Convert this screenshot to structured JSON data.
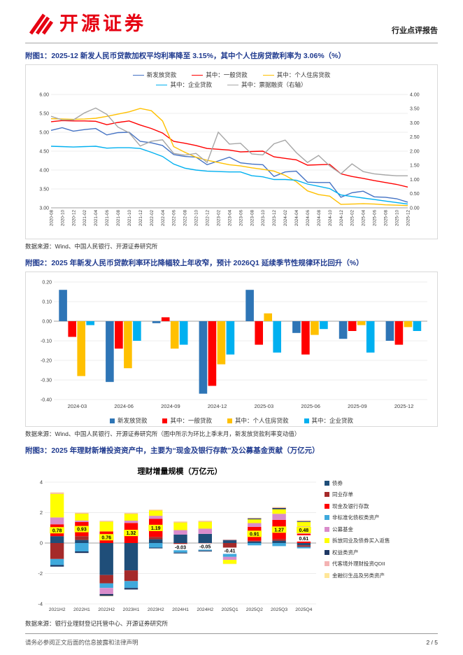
{
  "page": {
    "brand": {
      "name": "开源证券",
      "logo_icon": "kaiyuan-logo-mark",
      "color": "#E60012"
    },
    "report_type": "行业点评报告",
    "colors": {
      "caption": "#1F3A8F",
      "header_rule": "#A6A6A6"
    },
    "footer": {
      "disclaimer": "请务必参阅正文后面的信息披露和法律声明",
      "page_number": "2 / 5"
    }
  },
  "figures": [
    {
      "caption": "附图1：2025-12 新发人民币贷款加权平均利率降至 3.15%，其中个人住房贷款利率为 3.06%（%）",
      "source": "数据来源：Wind、中国人民银行、开源证券研究所"
    },
    {
      "caption": "附图2：2025 年新发人民币贷款利率环比降幅较上年收窄，预计 2026Q1 延续季节性规律环比回升（%）",
      "source": "数据来源：Wind、中国人民银行、开源证券研究所（图中所示为环比上季末月，新发放贷款利率变动值）"
    },
    {
      "caption": "附图3：2025 年理财新增投资资产中，主要为“现金及银行存款”及公募基金贡献（万亿元）",
      "source": "数据来源：银行业理财登记托管中心、开源证券研究所"
    }
  ],
  "chart_data": [
    {
      "type": "line",
      "title": "",
      "x": [
        "2020-08",
        "2020-10",
        "2020-12",
        "2021-02",
        "2021-04",
        "2021-06",
        "2021-08",
        "2021-10",
        "2021-12",
        "2022-02",
        "2022-04",
        "2022-06",
        "2022-08",
        "2022-10",
        "2022-12",
        "2023-02",
        "2023-04",
        "2023-06",
        "2023-08",
        "2023-10",
        "2023-12",
        "2024-02",
        "2024-04",
        "2024-06",
        "2024-08",
        "2024-10",
        "2024-12",
        "2025-02",
        "2025-04",
        "2025-06",
        "2025-08",
        "2025-10",
        "2025-12"
      ],
      "left_axis": {
        "min": 3.0,
        "max": 6.0,
        "step": 0.5
      },
      "right_axis": {
        "min": 0.0,
        "max": 4.0,
        "step": 0.5
      },
      "grid": true,
      "legend_position": "top",
      "legend_rows": [
        [
          0,
          1,
          2
        ],
        [
          3,
          4
        ]
      ],
      "series": [
        {
          "name": "新发放贷款",
          "axis": "left",
          "color": "#4472C4",
          "values": [
            5.05,
            5.12,
            5.03,
            5.07,
            5.1,
            4.93,
            4.99,
            5.0,
            4.76,
            4.72,
            4.65,
            4.41,
            4.36,
            4.34,
            4.14,
            4.24,
            4.34,
            4.19,
            4.16,
            4.14,
            3.83,
            3.95,
            3.97,
            3.68,
            3.67,
            3.67,
            3.28,
            3.4,
            3.44,
            3.29,
            3.28,
            3.24,
            3.15
          ]
        },
        {
          "name": "其中：一般贷款",
          "axis": "left",
          "color": "#FF0000",
          "values": [
            5.28,
            5.31,
            5.3,
            5.3,
            5.29,
            5.2,
            5.26,
            5.3,
            5.19,
            5.1,
            4.98,
            4.76,
            4.71,
            4.65,
            4.57,
            4.55,
            4.53,
            4.48,
            4.49,
            4.5,
            4.35,
            4.31,
            4.27,
            4.13,
            4.14,
            4.15,
            3.9,
            3.83,
            3.78,
            3.72,
            3.67,
            3.62,
            3.55
          ]
        },
        {
          "name": "其中：个人住房贷款",
          "axis": "left",
          "color": "#FFC000",
          "values": [
            5.36,
            5.35,
            5.34,
            5.35,
            5.37,
            5.42,
            5.48,
            5.54,
            5.63,
            5.57,
            5.3,
            4.62,
            4.47,
            4.34,
            4.26,
            4.2,
            4.14,
            4.11,
            4.06,
            4.02,
            3.97,
            3.86,
            3.69,
            3.45,
            3.35,
            3.31,
            3.09,
            3.1,
            3.11,
            3.1,
            3.08,
            3.07,
            3.06
          ]
        },
        {
          "name": "其中：企业贷款",
          "axis": "left",
          "color": "#00B0F0",
          "values": [
            4.63,
            4.62,
            4.61,
            4.62,
            4.63,
            4.58,
            4.59,
            4.59,
            4.57,
            4.47,
            4.36,
            4.16,
            4.05,
            4.0,
            3.97,
            3.96,
            3.95,
            3.95,
            3.85,
            3.82,
            3.75,
            3.75,
            3.73,
            3.63,
            3.57,
            3.51,
            3.34,
            3.3,
            3.26,
            3.22,
            3.18,
            3.14,
            3.1
          ]
        },
        {
          "name": "其中：票据融资（右轴）",
          "axis": "right",
          "color": "#A6A6A6",
          "values": [
            3.23,
            3.1,
            3.1,
            3.35,
            3.52,
            3.3,
            2.85,
            2.65,
            2.18,
            2.35,
            2.4,
            1.92,
            1.86,
            1.92,
            1.6,
            2.67,
            2.25,
            2.28,
            1.9,
            1.87,
            2.26,
            2.39,
            1.95,
            1.6,
            1.85,
            1.48,
            1.2,
            1.55,
            1.28,
            1.2,
            1.16,
            1.13,
            1.13
          ]
        }
      ]
    },
    {
      "type": "bar",
      "title": "",
      "categories": [
        "2024-03",
        "2024-06",
        "2024-09",
        "2024-12",
        "2025-03",
        "2025-06",
        "2025-09",
        "2025-12"
      ],
      "y_axis": {
        "min": -0.4,
        "max": 0.2,
        "step": 0.1
      },
      "grid": true,
      "legend_position": "bottom",
      "series": [
        {
          "name": "新发放贷款",
          "color": "#2E75B6",
          "values": [
            0.16,
            -0.31,
            -0.01,
            -0.37,
            0.16,
            -0.06,
            -0.09,
            -0.1
          ]
        },
        {
          "name": "其中：一般贷款",
          "color": "#FF0000",
          "values": [
            -0.08,
            -0.14,
            0.02,
            -0.33,
            -0.12,
            -0.17,
            -0.05,
            -0.12
          ]
        },
        {
          "name": "其中：个人住房贷款",
          "color": "#FFC000",
          "values": [
            -0.28,
            -0.24,
            -0.14,
            -0.22,
            0.04,
            -0.07,
            -0.02,
            -0.03
          ]
        },
        {
          "name": "其中：企业贷款",
          "color": "#00B0F0",
          "values": [
            -0.02,
            -0.1,
            -0.12,
            -0.17,
            -0.16,
            -0.04,
            -0.16,
            -0.05
          ]
        }
      ]
    },
    {
      "type": "stacked_bar",
      "title": "理财增量规模（万亿元）",
      "categories": [
        "2021H2",
        "2022H1",
        "2022H2",
        "2023H1",
        "2023H2",
        "2024H1",
        "2024H2",
        "2025Q1",
        "2025Q2",
        "2025Q3",
        "2025Q4"
      ],
      "y_axis": {
        "min": -4,
        "max": 4,
        "step": 2
      },
      "grid": true,
      "legend_position": "right",
      "series": [
        {
          "name": "债券",
          "color": "#1F4E79",
          "values": [
            0.45,
            0.2,
            -2.1,
            -1.8,
            0.25,
            0.55,
            0.6,
            0.15,
            0.1,
            0.15,
            -0.15
          ]
        },
        {
          "name": "同业存单",
          "color": "#A52A2A",
          "values": [
            -1.05,
            0.25,
            -0.55,
            -0.7,
            0.15,
            -0.25,
            -0.2,
            -0.3,
            0.05,
            0.1,
            -0.1
          ]
        },
        {
          "name": "现金及银行存款",
          "color": "#FF0000",
          "values": [
            0.78,
            0.93,
            0.76,
            1.32,
            1.19,
            -0.03,
            -0.05,
            -0.41,
            0.91,
            1.27,
            0.61
          ]
        },
        {
          "name": "非标准化债权类资产",
          "color": "#3FA9DC",
          "values": [
            -0.4,
            -0.55,
            -0.3,
            -0.45,
            -0.3,
            -0.35,
            -0.25,
            -0.2,
            -0.15,
            -0.2,
            -0.1
          ]
        },
        {
          "name": "公募基金",
          "color": "#D98CCB",
          "values": [
            0.45,
            0.1,
            -0.4,
            0.15,
            0.2,
            0.3,
            0.35,
            -0.2,
            0.25,
            0.4,
            0.48
          ]
        },
        {
          "name": "拆放同业及债券买入返售",
          "color": "#FFFF00",
          "values": [
            1.55,
            0.45,
            0.65,
            0.45,
            0.35,
            0.5,
            0.45,
            -0.25,
            0.25,
            0.3,
            0.3
          ]
        },
        {
          "name": "权益类资产",
          "color": "#1F3864",
          "values": [
            -0.1,
            -0.1,
            -0.12,
            -0.1,
            -0.05,
            -0.05,
            -0.05,
            0.05,
            0.05,
            0.08,
            0.05
          ]
        },
        {
          "name": "代客境外理财投资QDII",
          "color": "#F4B3B3",
          "values": [
            0.08,
            0.05,
            0.05,
            0.04,
            0.04,
            0.05,
            0.05,
            0.03,
            0.04,
            0.05,
            0.04
          ]
        },
        {
          "name": "金融衍生品及另类资产",
          "color": "#FFE699",
          "values": [
            0.02,
            0.02,
            -0.02,
            0.02,
            0.02,
            0.02,
            0.02,
            -0.02,
            0.02,
            0.02,
            0.02
          ]
        }
      ],
      "label_series": "现金及银行存款",
      "labels": [
        "0.78",
        "0.93",
        "0.76",
        "1.32",
        "1.19",
        "-0.03",
        "-0.05",
        "-0.41",
        "0.91",
        "1.27",
        "0.61"
      ],
      "label_highlight": [
        true,
        true,
        true,
        true,
        true,
        false,
        false,
        false,
        true,
        true,
        false
      ],
      "extra_label": {
        "category_index": 10,
        "series": "公募基金",
        "text": "0.48",
        "highlight": true
      }
    }
  ]
}
